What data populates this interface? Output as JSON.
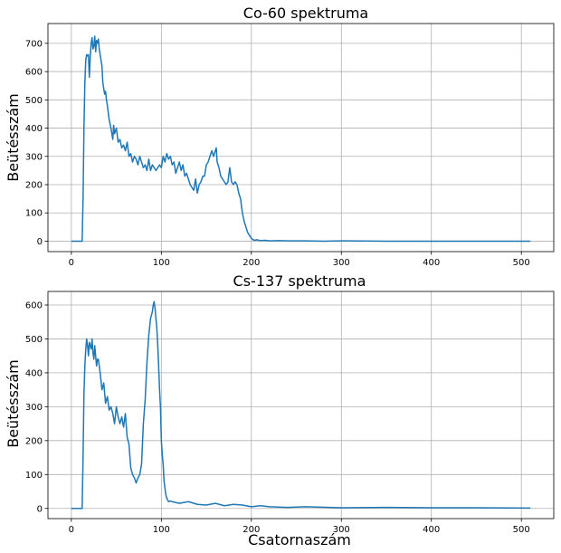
{
  "chart_data": [
    {
      "type": "line",
      "title": "Co-60 spektruma",
      "xlabel": "",
      "ylabel": "Beütésszám",
      "xlim": [
        -26,
        536
      ],
      "ylim": [
        -37,
        770
      ],
      "xticks": [
        0,
        100,
        200,
        300,
        400,
        500
      ],
      "yticks": [
        0,
        100,
        200,
        300,
        400,
        500,
        600,
        700
      ],
      "grid": true,
      "color": "#1f77b4",
      "series": [
        {
          "x": [
            0,
            12,
            13,
            14,
            15,
            16,
            17,
            18,
            19,
            20,
            21,
            22,
            23,
            24,
            25,
            26,
            27,
            28,
            29,
            30,
            31,
            32,
            33,
            34,
            35,
            36,
            37,
            38,
            39,
            40,
            42,
            44,
            46,
            47,
            48,
            50,
            52,
            54,
            56,
            58,
            60,
            62,
            64,
            66,
            68,
            70,
            72,
            74,
            76,
            78,
            80,
            82,
            84,
            86,
            88,
            90,
            92,
            94,
            96,
            98,
            100,
            102,
            104,
            106,
            108,
            110,
            112,
            114,
            116,
            118,
            120,
            122,
            124,
            126,
            128,
            130,
            132,
            134,
            136,
            138,
            140,
            142,
            144,
            146,
            148,
            150,
            152,
            154,
            156,
            158,
            160,
            161,
            162,
            164,
            166,
            168,
            170,
            172,
            174,
            176,
            178,
            180,
            182,
            184,
            186,
            188,
            190,
            192,
            194,
            196,
            198,
            200,
            202,
            204,
            206,
            210,
            215,
            220,
            230,
            240,
            260,
            280,
            300,
            350,
            400,
            450,
            510
          ],
          "values": [
            0,
            0,
            150,
            400,
            560,
            640,
            660,
            655,
            660,
            580,
            650,
            700,
            720,
            680,
            690,
            725,
            670,
            710,
            700,
            715,
            680,
            660,
            640,
            620,
            560,
            540,
            520,
            530,
            500,
            480,
            430,
            400,
            360,
            410,
            380,
            400,
            350,
            360,
            330,
            340,
            320,
            350,
            300,
            310,
            280,
            300,
            290,
            270,
            300,
            280,
            260,
            270,
            250,
            290,
            250,
            270,
            260,
            250,
            260,
            270,
            260,
            300,
            280,
            310,
            290,
            300,
            270,
            280,
            240,
            260,
            280,
            250,
            270,
            230,
            240,
            220,
            200,
            190,
            180,
            220,
            170,
            200,
            210,
            230,
            230,
            270,
            280,
            300,
            320,
            300,
            320,
            330,
            280,
            260,
            230,
            220,
            210,
            200,
            210,
            260,
            210,
            200,
            210,
            200,
            170,
            150,
            100,
            70,
            50,
            30,
            20,
            10,
            5,
            3,
            5,
            2,
            3,
            1,
            2,
            1,
            1,
            0,
            1,
            0,
            0,
            0,
            0
          ]
        }
      ]
    },
    {
      "type": "line",
      "title": "Cs-137 spektruma",
      "xlabel": "Csatornaszám",
      "ylabel": "Beütésszám",
      "xlim": [
        -26,
        536
      ],
      "ylim": [
        -30,
        640
      ],
      "xticks": [
        0,
        100,
        200,
        300,
        400,
        500
      ],
      "yticks": [
        0,
        100,
        200,
        300,
        400,
        500,
        600
      ],
      "grid": true,
      "color": "#1f77b4",
      "series": [
        {
          "x": [
            0,
            12,
            13,
            14,
            15,
            16,
            17,
            18,
            19,
            20,
            21,
            22,
            23,
            24,
            25,
            26,
            27,
            28,
            29,
            30,
            32,
            34,
            36,
            38,
            40,
            42,
            44,
            46,
            48,
            50,
            52,
            54,
            56,
            58,
            60,
            62,
            64,
            66,
            68,
            70,
            72,
            74,
            76,
            78,
            80,
            82,
            84,
            86,
            88,
            90,
            91,
            92,
            93,
            94,
            95,
            96,
            97,
            98,
            99,
            100,
            101,
            102,
            103,
            104,
            105,
            106,
            107,
            108,
            110,
            112,
            115,
            120,
            130,
            140,
            150,
            160,
            170,
            180,
            190,
            200,
            210,
            220,
            240,
            260,
            300,
            350,
            400,
            450,
            510
          ],
          "values": [
            0,
            0,
            150,
            340,
            420,
            470,
            500,
            480,
            450,
            490,
            480,
            470,
            500,
            460,
            440,
            480,
            450,
            420,
            440,
            440,
            400,
            350,
            370,
            310,
            330,
            290,
            300,
            280,
            250,
            300,
            270,
            250,
            270,
            240,
            280,
            210,
            190,
            120,
            100,
            90,
            75,
            90,
            100,
            130,
            250,
            320,
            430,
            510,
            560,
            580,
            600,
            610,
            590,
            560,
            530,
            480,
            420,
            350,
            300,
            200,
            160,
            130,
            80,
            60,
            40,
            30,
            25,
            20,
            22,
            20,
            18,
            15,
            20,
            12,
            10,
            15,
            8,
            12,
            10,
            5,
            8,
            5,
            3,
            5,
            2,
            3,
            2,
            2,
            1
          ]
        }
      ]
    }
  ]
}
